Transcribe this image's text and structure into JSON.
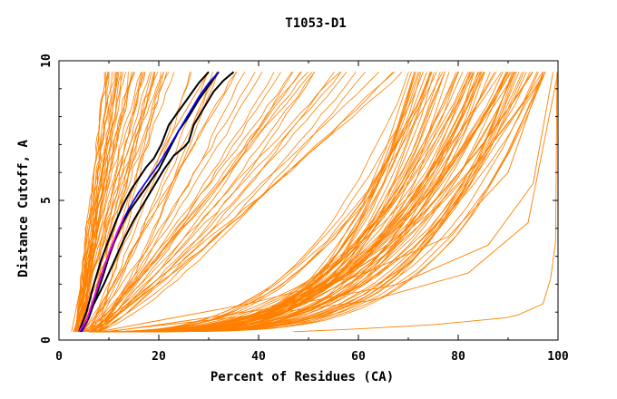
{
  "chart_data": {
    "type": "line",
    "title": "T1053-D1",
    "xlabel": "Percent of Residues (CA)",
    "ylabel": "Distance Cutoff, A",
    "xlim": [
      0,
      100
    ],
    "ylim": [
      0,
      10
    ],
    "x_ticks": [
      0,
      20,
      40,
      60,
      80,
      100
    ],
    "x_tick_labels": [
      "0",
      "20",
      "40",
      "60",
      "80",
      "100"
    ],
    "y_ticks": [
      0,
      5,
      10
    ],
    "y_tick_labels": [
      "0",
      "5",
      "10"
    ],
    "grid": false,
    "legend": "none",
    "colors": {
      "models": "#ff8000",
      "highlight_black": "#000000",
      "highlight_blue": "#0000ff",
      "highlight_magenta": "#ff00ff"
    },
    "generated_bands": [
      {
        "x0": 3.0,
        "x0_spread": 2.0,
        "end_x_min": 8.0,
        "end_x_max": 22.0,
        "curve_min": 0.75,
        "curve_max": 1.1,
        "count": 34
      },
      {
        "x0": 4.0,
        "x0_spread": 4.0,
        "end_x_min": 20.0,
        "end_x_max": 72.0,
        "curve_min": 0.95,
        "curve_max": 1.35,
        "count": 34
      },
      {
        "x0": 6.0,
        "x0_spread": 6.0,
        "end_x_min": 70.0,
        "end_x_max": 98.0,
        "curve_min": 2.5,
        "curve_max": 4.6,
        "count": 80
      }
    ],
    "series": [
      {
        "color": "#ff8000",
        "x": [
          9.0,
          19.0,
          40.0,
          62.0,
          82.0,
          94.0,
          100.0
        ],
        "y": [
          0.3,
          0.5,
          0.9,
          1.4,
          2.4,
          4.2,
          9.6
        ]
      },
      {
        "color": "#ff8000",
        "x": [
          10.0,
          22.0,
          45.0,
          68.0,
          86.0,
          95.0,
          99.0
        ],
        "y": [
          0.3,
          0.6,
          1.2,
          2.0,
          3.4,
          5.6,
          9.6
        ]
      },
      {
        "color": "#ff8000",
        "x": [
          8.0,
          17.0,
          38.0,
          60.0,
          78.0,
          90.0,
          97.0
        ],
        "y": [
          0.3,
          0.6,
          1.3,
          2.3,
          3.7,
          6.0,
          9.6
        ]
      },
      {
        "color": "#ff8000",
        "x": [
          47.0,
          60.0,
          75.0,
          89.5,
          92.0,
          97.0,
          98.5,
          99.5,
          99.8
        ],
        "y": [
          0.3,
          0.4,
          0.55,
          0.8,
          0.9,
          1.3,
          2.2,
          3.5,
          9.6
        ]
      },
      {
        "color": "#ff8000",
        "x": [
          2.5,
          5.0,
          8.0,
          10.5,
          12.0
        ],
        "y": [
          0.3,
          2.5,
          5.5,
          8.0,
          9.6
        ]
      },
      {
        "color": "#ff8000",
        "x": [
          3.0,
          7.0,
          14.0,
          22.0,
          30.0
        ],
        "y": [
          0.3,
          2.0,
          4.5,
          7.2,
          9.6
        ]
      },
      {
        "color": "#000000",
        "x": [
          4.5,
          6.0,
          7.5,
          9.0,
          10.0,
          11.0,
          12.5,
          14.0,
          16.0,
          18.0,
          20.0,
          22.0,
          24.0,
          26.0,
          28.0,
          30.0,
          32.0
        ],
        "y": [
          0.3,
          0.8,
          1.6,
          2.4,
          3.0,
          3.5,
          4.1,
          4.6,
          5.1,
          5.6,
          6.1,
          6.8,
          7.5,
          8.0,
          8.6,
          9.1,
          9.6
        ]
      },
      {
        "color": "#000000",
        "x": [
          4.0,
          5.5,
          7.0,
          8.5,
          10.0,
          11.5,
          13.0,
          14.5,
          16.0,
          17.5,
          19.0,
          20.5,
          22.0,
          24.0,
          26.0,
          28.0,
          30.0
        ],
        "y": [
          0.3,
          1.0,
          2.0,
          2.9,
          3.6,
          4.3,
          4.9,
          5.4,
          5.8,
          6.2,
          6.5,
          7.0,
          7.7,
          8.2,
          8.7,
          9.2,
          9.6
        ]
      },
      {
        "color": "#000000",
        "x": [
          4.2,
          5.5,
          7.0,
          9.0,
          11.0,
          13.0,
          15.0,
          17.0,
          19.0,
          21.0,
          23.0,
          25.0,
          26.0,
          27.0,
          29.0,
          31.0,
          33.0,
          35.0
        ],
        "y": [
          0.3,
          0.7,
          1.3,
          2.0,
          2.8,
          3.6,
          4.3,
          4.9,
          5.5,
          6.1,
          6.6,
          6.9,
          7.1,
          7.7,
          8.3,
          8.9,
          9.3,
          9.6
        ]
      },
      {
        "color": "#0000ff",
        "x": [
          4.5,
          6.0,
          7.5,
          9.0,
          10.5,
          12.0,
          14.0,
          16.0,
          18.0,
          20.0,
          22.0,
          24.0,
          26.0,
          28.0,
          30.0,
          32.0
        ],
        "y": [
          0.3,
          0.9,
          1.8,
          2.6,
          3.3,
          4.0,
          4.7,
          5.3,
          5.8,
          6.3,
          6.9,
          7.5,
          8.1,
          8.7,
          9.2,
          9.6
        ]
      },
      {
        "color": "#ff00ff",
        "x": [
          4.0,
          5.5,
          7.0,
          8.5,
          10.0,
          11.5,
          13.0
        ],
        "y": [
          0.3,
          0.7,
          1.5,
          2.3,
          3.1,
          3.8,
          4.4
        ]
      }
    ]
  }
}
